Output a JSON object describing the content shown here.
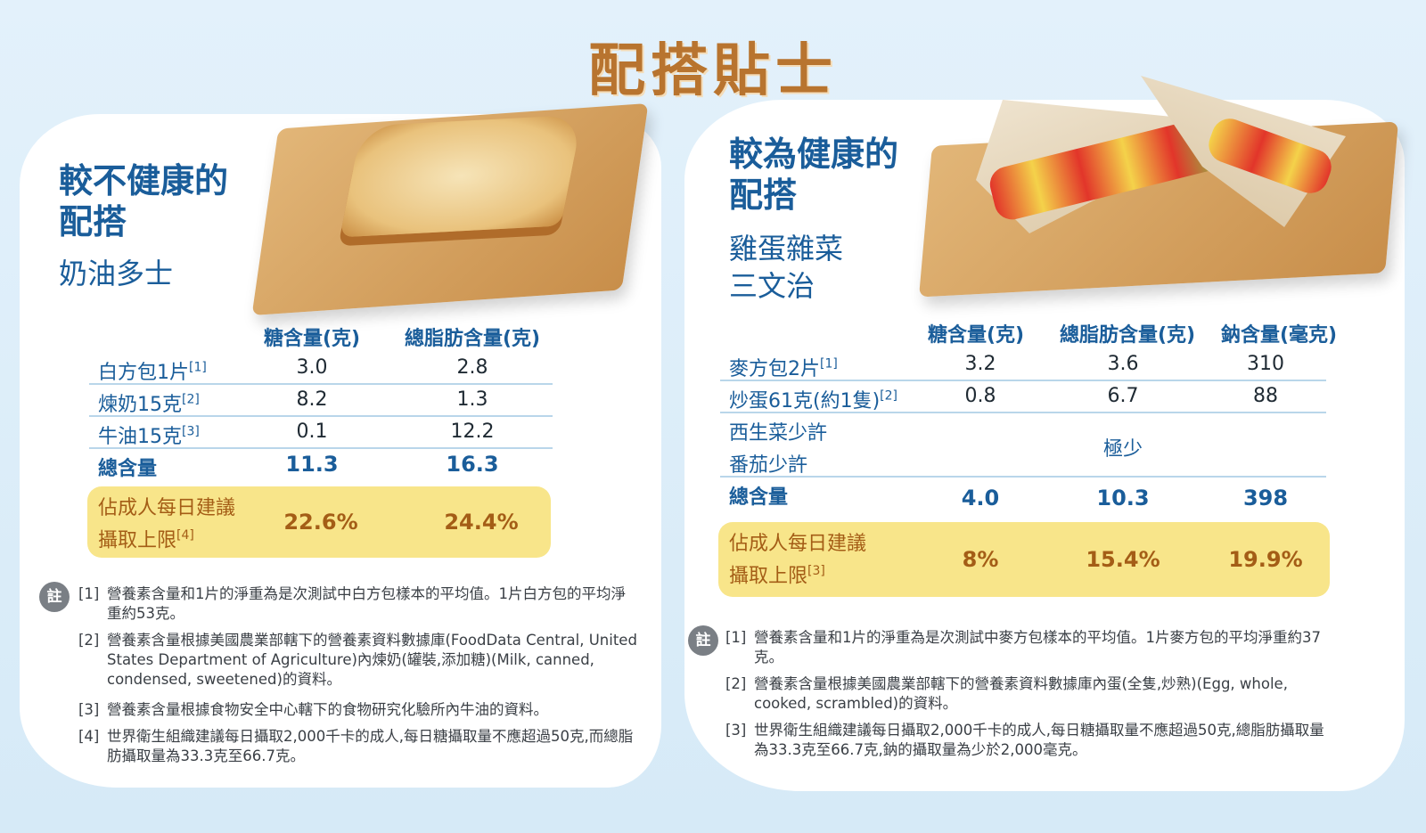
{
  "title": "配搭貼士",
  "left": {
    "heading_line1": "較不健康的",
    "heading_line2": "配搭",
    "food_name": "奶油多士",
    "columns": [
      "糖含量(克)",
      "總脂肪含量(克)"
    ],
    "rows": [
      {
        "label": "白方包1片",
        "ref": "[1]",
        "values": [
          "3.0",
          "2.8"
        ]
      },
      {
        "label": "煉奶15克",
        "ref": "[2]",
        "values": [
          "8.2",
          "1.3"
        ]
      },
      {
        "label": "牛油15克",
        "ref": "[3]",
        "values": [
          "0.1",
          "12.2"
        ]
      }
    ],
    "total": {
      "label": "總含量",
      "values": [
        "11.3",
        "16.3"
      ]
    },
    "highlight": {
      "label_line1": "佔成人每日建議",
      "label_line2": "攝取上限",
      "ref": "[4]",
      "values": [
        "22.6%",
        "24.4%"
      ]
    },
    "note_badge": "註",
    "notes": [
      {
        "num": "[1]",
        "text": "營養素含量和1片的淨重為是次測試中白方包樣本的平均值。1片白方包的平均淨重約53克。"
      },
      {
        "num": "[2]",
        "text": "營養素含量根據美國農業部轄下的營養素資料數據庫(FoodData Central, United States Department of Agriculture)內煉奶(罐裝,添加糖)(Milk, canned, condensed, sweetened)的資料。"
      },
      {
        "num": "[3]",
        "text": "營養素含量根據食物安全中心轄下的食物研究化驗所內牛油的資料。"
      },
      {
        "num": "[4]",
        "text": "世界衛生組織建議每日攝取2,000千卡的成人,每日糖攝取量不應超過50克,而總脂肪攝取量為33.3克至66.7克。"
      }
    ]
  },
  "right": {
    "heading_line1": "較為健康的",
    "heading_line2": "配搭",
    "food_name_line1": "雞蛋雜菜",
    "food_name_line2": "三文治",
    "columns": [
      "糖含量(克)",
      "總脂肪含量(克)",
      "鈉含量(毫克)"
    ],
    "rows": [
      {
        "label": "麥方包2片",
        "ref": "[1]",
        "values": [
          "3.2",
          "3.6",
          "310"
        ]
      },
      {
        "label": "炒蛋61克(約1隻)",
        "ref": "[2]",
        "values": [
          "0.8",
          "6.7",
          "88"
        ]
      }
    ],
    "veg_rows": [
      "西生菜少許",
      "番茄少許"
    ],
    "veg_value": "極少",
    "total": {
      "label": "總含量",
      "values": [
        "4.0",
        "10.3",
        "398"
      ]
    },
    "highlight": {
      "label_line1": "佔成人每日建議",
      "label_line2": "攝取上限",
      "ref": "[3]",
      "values": [
        "8%",
        "15.4%",
        "19.9%"
      ]
    },
    "note_badge": "註",
    "notes": [
      {
        "num": "[1]",
        "text": "營養素含量和1片的淨重為是次測試中麥方包樣本的平均值。1片麥方包的平均淨重約37克。"
      },
      {
        "num": "[2]",
        "text": "營養素含量根據美國農業部轄下的營養素資料數據庫內蛋(全隻,炒熟)(Egg, whole, cooked, scrambled)的資料。"
      },
      {
        "num": "[3]",
        "text": "世界衛生組織建議每日攝取2,000千卡的成人,每日糖攝取量不應超過50克,總脂肪攝取量為33.3克至66.7克,鈉的攝取量為少於2,000毫克。"
      }
    ]
  }
}
